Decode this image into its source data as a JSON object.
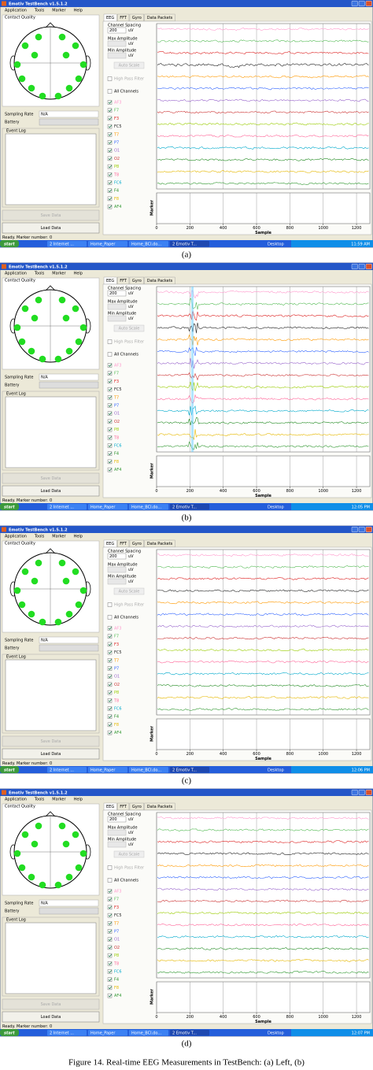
{
  "window": {
    "title": "Emotiv TestBench v1.5.1.2",
    "menu": [
      "Application",
      "Tools",
      "Marker",
      "Help"
    ],
    "contact_quality": "Contact Quality",
    "sampling_rate": "Sampling Rate",
    "sampling_rate_value": "N/A",
    "battery": "Battery",
    "event_log": "Event Log",
    "save_data": "Save Data",
    "load_data": "Load Data",
    "tabs": [
      "EEG",
      "FFT",
      "Gyro",
      "Data Packets"
    ],
    "channel_spacing": "Channel Spacing",
    "channel_spacing_value": "200",
    "unit": "uV",
    "max_amplitude": "Max Amplitude",
    "min_amplitude": "Min Amplitude",
    "auto_scale": "Auto Scale",
    "high_pass_filter": "High Pass Filter",
    "all_channels": "All Channels",
    "channels": [
      {
        "name": "AF3",
        "color": "#ff99cc"
      },
      {
        "name": "F7",
        "color": "#55bb55"
      },
      {
        "name": "F3",
        "color": "#dd2222"
      },
      {
        "name": "FC5",
        "color": "#222222"
      },
      {
        "name": "T7",
        "color": "#ff9900"
      },
      {
        "name": "P7",
        "color": "#3366ff"
      },
      {
        "name": "O1",
        "color": "#9966cc"
      },
      {
        "name": "O2",
        "color": "#cc3333"
      },
      {
        "name": "P8",
        "color": "#99cc00"
      },
      {
        "name": "T8",
        "color": "#ff6699"
      },
      {
        "name": "FC6",
        "color": "#00aacc"
      },
      {
        "name": "F4",
        "color": "#228b22"
      },
      {
        "name": "F8",
        "color": "#e6b800"
      },
      {
        "name": "AF4",
        "color": "#339933"
      }
    ],
    "marker": "Marker",
    "x_axis": {
      "label": "Sample",
      "ticks": [
        0,
        200,
        400,
        600,
        800,
        1000,
        1200
      ],
      "range": [
        0,
        1280
      ]
    },
    "status": {
      "ready": "Ready.",
      "marker_number": "Marker number:",
      "marker_value": "0"
    },
    "taskbar": {
      "start": "start",
      "items": [
        "2 Internet ...",
        "Home_Paper",
        "Home_BCI.do...",
        "2 Emotiv T..."
      ],
      "desktop": "Desktop"
    }
  },
  "panels": [
    {
      "caption": "(a)",
      "clock": "11:59 AM"
    },
    {
      "caption": "(b)",
      "clock": "12:05 PM"
    },
    {
      "caption": "(c)",
      "clock": "12:06 PM"
    },
    {
      "caption": "(d)",
      "clock": "12:07 PM"
    }
  ],
  "figure_caption": "Figure 14. Real-time EEG Measurements in TestBench: (a) Left, (b)"
}
